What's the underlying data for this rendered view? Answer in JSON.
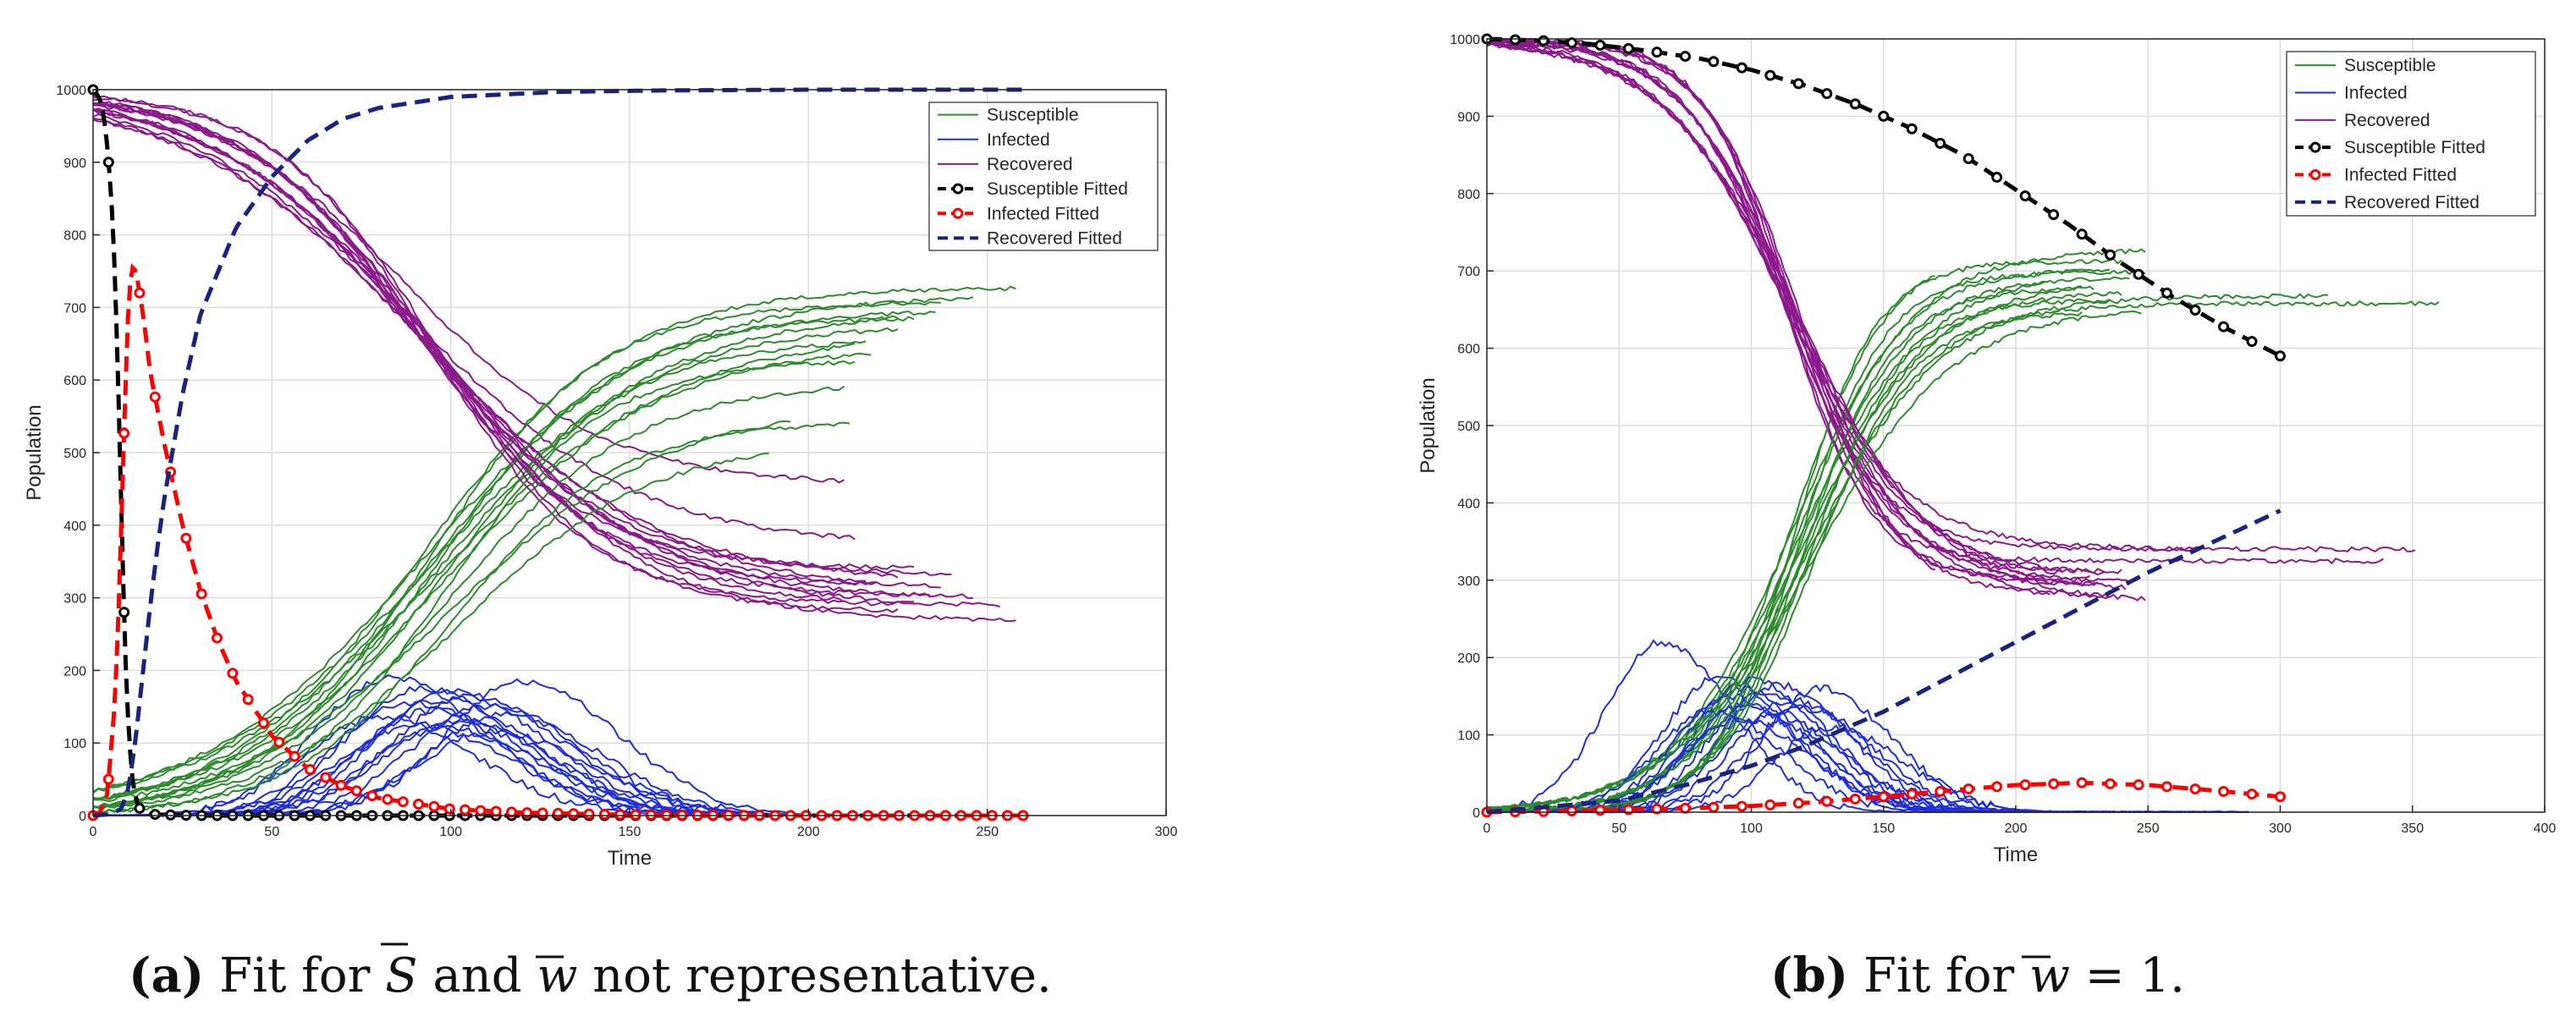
{
  "chart_data": [
    {
      "type": "line",
      "xlabel": "Time",
      "ylabel": "Population",
      "xlim": [
        0,
        300
      ],
      "ylim": [
        0,
        1000
      ],
      "xticks": [
        0,
        50,
        100,
        150,
        200,
        250,
        300
      ],
      "yticks": [
        0,
        100,
        200,
        300,
        400,
        500,
        600,
        700,
        800,
        900,
        1000
      ],
      "grid": true,
      "legend_position": "top-right",
      "legend": [
        "Susceptible",
        "Infected",
        "Recovered",
        "Susceptible Fitted",
        "Infected Fitted",
        "Recovered Fitted"
      ],
      "caption": {
        "letter": "(a)",
        "pre": " Fit for ",
        "s": "S",
        "mid": " and ",
        "w": "w",
        "post": " not representative."
      },
      "series": [
        {
          "name": "Susceptible",
          "style": "simulations",
          "color": "#2e8b2e",
          "n_runs": 15,
          "final_values": [
            730,
            720,
            710,
            700,
            700,
            690,
            680,
            670,
            660,
            650,
            630,
            600,
            570,
            545,
            520
          ],
          "end_times": [
            258,
            246,
            238,
            236,
            226,
            230,
            226,
            214,
            216,
            218,
            214,
            210,
            196,
            212,
            190
          ]
        },
        {
          "name": "Infected",
          "style": "simulations",
          "color": "#1f2ed6",
          "n_runs": 15,
          "peaks": [
            190,
            185,
            175,
            170,
            165,
            160,
            155,
            150,
            145,
            140,
            135,
            130,
            125,
            120,
            115
          ],
          "peak_times": [
            83,
            120,
            92,
            100,
            105,
            97,
            88,
            110,
            95,
            115,
            80,
            102,
            90,
            98,
            112
          ]
        },
        {
          "name": "Recovered",
          "style": "simulations",
          "color": "#8b1a8b",
          "n_runs": 15,
          "final_values": [
            455,
            370,
            340,
            330,
            320,
            315,
            310,
            305,
            300,
            297,
            290,
            288,
            285,
            280,
            268
          ],
          "end_times": [
            210,
            214,
            230,
            240,
            226,
            238,
            220,
            216,
            246,
            234,
            254,
            210,
            230,
            226,
            258
          ]
        },
        {
          "name": "Susceptible Fitted",
          "color": "#000000",
          "style": "dashed-circle",
          "x": [
            0,
            1,
            2,
            3,
            4,
            5,
            6,
            7,
            8,
            9,
            10,
            11,
            12,
            13,
            14,
            16,
            20,
            30,
            50,
            100,
            150,
            200,
            260
          ],
          "y": [
            1000,
            995,
            985,
            965,
            920,
            860,
            760,
            600,
            400,
            220,
            110,
            50,
            22,
            10,
            5,
            2,
            1,
            0,
            0,
            0,
            0,
            0,
            0
          ]
        },
        {
          "name": "Infected Fitted",
          "color": "#ff0000",
          "style": "dashed-circle",
          "x": [
            0,
            2,
            4,
            6,
            7,
            8,
            9,
            10,
            11,
            12,
            14,
            16,
            18,
            20,
            25,
            30,
            35,
            40,
            50,
            60,
            70,
            80,
            100,
            120,
            150,
            200,
            260
          ],
          "y": [
            0,
            5,
            30,
            150,
            260,
            420,
            580,
            720,
            755,
            750,
            690,
            610,
            560,
            510,
            400,
            310,
            240,
            185,
            110,
            65,
            40,
            24,
            9,
            4,
            1,
            0,
            0
          ]
        },
        {
          "name": "Recovered Fitted",
          "color": "#1a237e",
          "style": "dashed",
          "x": [
            0,
            5,
            8,
            10,
            12,
            14,
            16,
            18,
            20,
            25,
            30,
            40,
            50,
            60,
            70,
            80,
            100,
            130,
            160,
            200,
            260
          ],
          "y": [
            0,
            2,
            10,
            40,
            110,
            200,
            290,
            370,
            440,
            580,
            690,
            810,
            880,
            930,
            960,
            975,
            990,
            997,
            999,
            1000,
            1000
          ]
        }
      ]
    },
    {
      "type": "line",
      "xlabel": "Time",
      "ylabel": "Population",
      "xlim": [
        0,
        400
      ],
      "ylim": [
        0,
        1000
      ],
      "xticks": [
        0,
        50,
        100,
        150,
        200,
        250,
        300,
        350,
        400
      ],
      "yticks": [
        0,
        100,
        200,
        300,
        400,
        500,
        600,
        700,
        800,
        900,
        1000
      ],
      "grid": true,
      "legend_position": "top-right",
      "legend": [
        "Susceptible",
        "Infected",
        "Recovered",
        "Susceptible Fitted",
        "Infected Fitted",
        "Recovered Fitted"
      ],
      "caption": {
        "letter": "(b)",
        "pre": " Fit for ",
        "w": "w",
        "post": " = 1."
      },
      "series": [
        {
          "name": "Susceptible",
          "style": "simulations",
          "color": "#2e8b2e",
          "n_runs": 15,
          "final_values": [
            735,
            730,
            715,
            705,
            700,
            700,
            695,
            690,
            680,
            675,
            670,
            665,
            660,
            655,
            650
          ],
          "end_times": [
            170,
            250,
            240,
            236,
            212,
            250,
            244,
            226,
            230,
            240,
            318,
            236,
            360,
            248,
            226
          ]
        },
        {
          "name": "Infected",
          "style": "simulations",
          "color": "#1f2ed6",
          "n_runs": 15,
          "peaks": [
            220,
            175,
            170,
            165,
            160,
            160,
            155,
            150,
            145,
            140,
            135,
            130,
            125,
            120,
            110
          ],
          "peak_times": [
            66,
            88,
            100,
            110,
            96,
            126,
            105,
            92,
            115,
            98,
            120,
            85,
            108,
            95,
            130
          ]
        },
        {
          "name": "Recovered",
          "style": "simulations",
          "color": "#8b1a8b",
          "n_runs": 15,
          "final_values": [
            340,
            340,
            325,
            310,
            305,
            300,
            300,
            298,
            295,
            290,
            285,
            280,
            275,
            270,
            265
          ],
          "end_times": [
            270,
            352,
            340,
            240,
            234,
            244,
            228,
            218,
            232,
            226,
            242,
            214,
            236,
            250,
            170
          ]
        },
        {
          "name": "Susceptible Fitted",
          "color": "#000000",
          "style": "dashed-circle",
          "x": [
            0,
            20,
            40,
            60,
            80,
            100,
            120,
            140,
            160,
            180,
            200,
            220,
            240,
            260,
            280,
            300
          ],
          "y": [
            1000,
            998,
            993,
            985,
            975,
            960,
            940,
            915,
            885,
            850,
            805,
            760,
            710,
            665,
            625,
            590
          ]
        },
        {
          "name": "Infected Fitted",
          "color": "#ff0000",
          "style": "dashed-circle",
          "x": [
            0,
            25,
            50,
            75,
            100,
            125,
            150,
            175,
            200,
            225,
            250,
            275,
            300
          ],
          "y": [
            0,
            1,
            3,
            5,
            8,
            13,
            20,
            28,
            35,
            38,
            35,
            28,
            20
          ]
        },
        {
          "name": "Recovered Fitted",
          "color": "#1a237e",
          "style": "dashed",
          "x": [
            0,
            50,
            75,
            100,
            120,
            150,
            175,
            200,
            225,
            250,
            275,
            300
          ],
          "y": [
            0,
            15,
            35,
            60,
            85,
            130,
            175,
            220,
            265,
            310,
            350,
            390
          ]
        }
      ]
    }
  ]
}
